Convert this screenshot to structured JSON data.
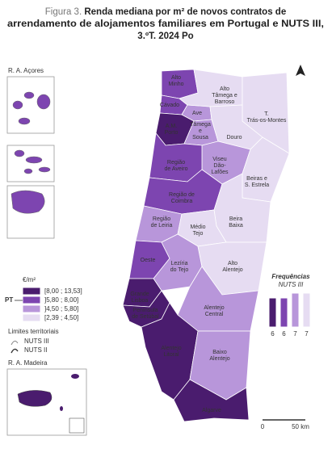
{
  "title": {
    "prefix": "Figura 3.",
    "lines": [
      "Renda mediana por m² de novos contratos de",
      "arrendamento de alojamentos familiares em Portugal e NUTS III,",
      "3.ºT. 2024 Po"
    ]
  },
  "insets": {
    "azores": "R. A. Açores",
    "azores_class": 1,
    "madeira": "R. A. Madeira",
    "madeira_class": 0
  },
  "legend": {
    "unit": "€/m²",
    "pt_label": "PT",
    "pt_class": 1,
    "classes": [
      {
        "label": "[8,00 ; 13,53]",
        "color": "#4a1c6e"
      },
      {
        "label": "]5,80 ; 8,00]",
        "color": "#7d45b0"
      },
      {
        "label": "]4,50 ; 5,80]",
        "color": "#b896da"
      },
      {
        "label": "[2,39 ; 4,50]",
        "color": "#e6dcf2"
      }
    ]
  },
  "limits": {
    "title": "Limites territoriais",
    "items": [
      "NUTS III",
      "NUTS II"
    ]
  },
  "frequencies": {
    "title": "Frequências",
    "subtitle": "NUTS III",
    "values": [
      6,
      6,
      7,
      7
    ]
  },
  "scale": {
    "start": "0",
    "end": "50 km"
  },
  "regions": [
    {
      "label": [
        "Alto",
        "Minho"
      ],
      "class": 1
    },
    {
      "label": [
        "Cávado"
      ],
      "class": 1
    },
    {
      "label": [
        "Ave"
      ],
      "class": 2
    },
    {
      "label": [
        "Alto",
        "Tâmega e",
        "Barroso"
      ],
      "class": 3
    },
    {
      "label": [
        "T.",
        "Trás-os-Montes"
      ],
      "class": 3
    },
    {
      "label": [
        "A.M.",
        "Porto"
      ],
      "class": 0
    },
    {
      "label": [
        "Tâmega",
        "e",
        "Sousa"
      ],
      "class": 2
    },
    {
      "label": [
        "Douro"
      ],
      "class": 3
    },
    {
      "label": [
        "Viseu",
        "Dão-",
        "Lafões"
      ],
      "class": 2
    },
    {
      "label": [
        "Região",
        "de Aveiro"
      ],
      "class": 1
    },
    {
      "label": [
        "Beiras e",
        "S. Estrela"
      ],
      "class": 3
    },
    {
      "label": [
        "Região de",
        "Coimbra"
      ],
      "class": 1
    },
    {
      "label": [
        "Região",
        "de Leiria"
      ],
      "class": 2
    },
    {
      "label": [
        "Beira",
        "Baixa"
      ],
      "class": 3
    },
    {
      "label": [
        "Médio",
        "Tejo"
      ],
      "class": 3
    },
    {
      "label": [
        "Oeste"
      ],
      "class": 1
    },
    {
      "label": [
        "Lezíria",
        "do Tejo"
      ],
      "class": 2
    },
    {
      "label": [
        "Alto",
        "Alentejo"
      ],
      "class": 3
    },
    {
      "label": [
        "Grande",
        "Lisboa"
      ],
      "class": 0
    },
    {
      "label": [
        "Península",
        "de Setúbal"
      ],
      "class": 0
    },
    {
      "label": [
        "Alentejo",
        "Central"
      ],
      "class": 2
    },
    {
      "label": [
        "Alentejo",
        "Litoral"
      ],
      "class": 0
    },
    {
      "label": [
        "Baixo",
        "Alentejo"
      ],
      "class": 2
    },
    {
      "label": [
        "Algarve"
      ],
      "class": 0
    }
  ]
}
